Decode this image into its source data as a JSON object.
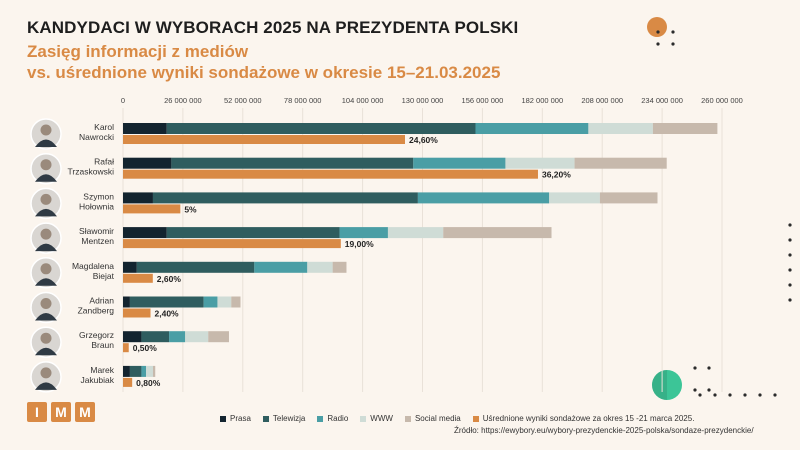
{
  "header": {
    "title": "KANDYDACI W WYBORACH 2025 NA PREZYDENTA POLSKI",
    "subtitle_line1": "Zasięg informacji z mediów",
    "subtitle_line2": "vs. uśrednione wyniki sondażowe w okresie 15–21.03.2025"
  },
  "logo": {
    "letters": [
      "I",
      "M",
      "M"
    ]
  },
  "legend": {
    "items": [
      "Prasa",
      "Telewizja",
      "Radio",
      "WWW",
      "Social media",
      "Uśrednione wyniki sondażowe za okres 15 -21 marca 2025."
    ]
  },
  "source": "Źródło: https://ewybory.eu/wybory-prezydenckie-2025-polska/sondaze-prezydenckie/",
  "colors": {
    "prasa": "#13242f",
    "telewizja": "#2f5d5f",
    "radio": "#4a9ea5",
    "www": "#cfdcd6",
    "social": "#c7b9ac",
    "poll": "#d98a45",
    "background": "#fbf5ee",
    "accent_green": "#3cc597"
  },
  "chart_data": {
    "type": "bar",
    "orientation": "horizontal",
    "stacked": true,
    "x_ticks": [
      "0",
      "26 000 000",
      "52 000 000",
      "78 000 000",
      "104 000 000",
      "130 000 000",
      "156 000 000",
      "182 000 000",
      "208 000 000",
      "234 000 000",
      "260 000 000"
    ],
    "xlim": [
      0,
      260000000
    ],
    "categories": [
      {
        "first": "Karol",
        "last": "Nawrocki"
      },
      {
        "first": "Rafał",
        "last": "Trzaskowski"
      },
      {
        "first": "Szymon",
        "last": "Hołownia"
      },
      {
        "first": "Sławomir",
        "last": "Mentzen"
      },
      {
        "first": "Magdalena",
        "last": "Biejat"
      },
      {
        "first": "Adrian",
        "last": "Zandberg"
      },
      {
        "first": "Grzegorz",
        "last": "Braun"
      },
      {
        "first": "Marek",
        "last": "Jakubiak"
      }
    ],
    "series": [
      {
        "name": "Prasa",
        "values": [
          19000000,
          21000000,
          13000000,
          19000000,
          6000000,
          3000000,
          8000000,
          3000000
        ]
      },
      {
        "name": "Telewizja",
        "values": [
          134000000,
          105000000,
          115000000,
          75000000,
          51000000,
          32000000,
          12000000,
          5000000
        ]
      },
      {
        "name": "Radio",
        "values": [
          49000000,
          40000000,
          57000000,
          21000000,
          23000000,
          6000000,
          7000000,
          2000000
        ]
      },
      {
        "name": "WWW",
        "values": [
          28000000,
          30000000,
          22000000,
          24000000,
          11000000,
          6000000,
          10000000,
          3000000
        ]
      },
      {
        "name": "Social media",
        "values": [
          28000000,
          40000000,
          25000000,
          47000000,
          6000000,
          4000000,
          9000000,
          1000000
        ]
      }
    ],
    "poll": {
      "name": "Uśrednione wyniki sondażowe za okres 15 -21 marca 2025.",
      "percent": [
        24.6,
        36.2,
        5,
        19,
        2.6,
        2.4,
        0.5,
        0.8
      ],
      "labels": [
        "24,60%",
        "36,20%",
        "5%",
        "19,00%",
        "2,60%",
        "2,40%",
        "0,50%",
        "0,80%"
      ]
    }
  }
}
